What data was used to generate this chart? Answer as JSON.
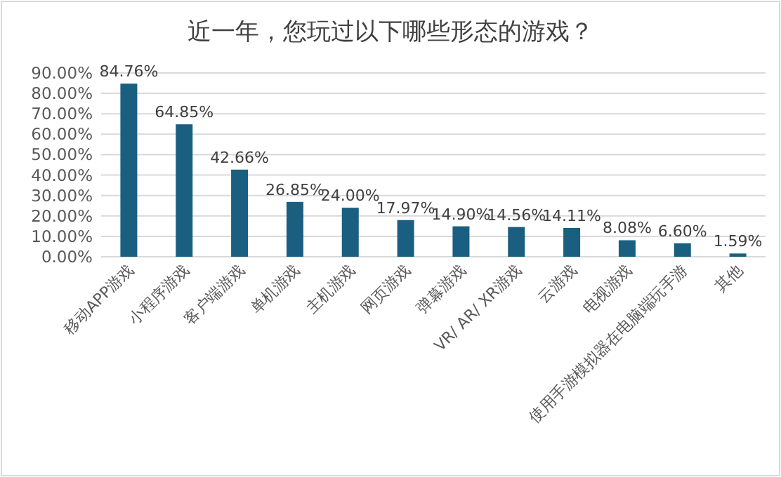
{
  "chart_data": {
    "type": "bar",
    "title": "近一年，您玩过以下哪些形态的游戏？",
    "categories": [
      "移动APP游戏",
      "小程序游戏",
      "客户端游戏",
      "单机游戏",
      "主机游戏",
      "网页游戏",
      "弹幕游戏",
      "VR/ AR/ XR游戏",
      "云游戏",
      "电视游戏",
      "使用手游模拟器在电脑端玩手游",
      "其他"
    ],
    "values": [
      84.76,
      64.85,
      42.66,
      26.85,
      24.0,
      17.97,
      14.9,
      14.56,
      14.11,
      8.08,
      6.6,
      1.59
    ],
    "value_labels": [
      "84.76%",
      "64.85%",
      "42.66%",
      "26.85%",
      "24.00%",
      "17.97%",
      "14.90%",
      "14.56%",
      "14.11%",
      "8.08%",
      "6.60%",
      "1.59%"
    ],
    "color": "#1a5f80",
    "ylim": [
      0,
      90
    ],
    "yticks": [
      {
        "value": 0,
        "label": "0.00%"
      },
      {
        "value": 10,
        "label": "10.00%"
      },
      {
        "value": 20,
        "label": "20.00%"
      },
      {
        "value": 30,
        "label": "30.00%"
      },
      {
        "value": 40,
        "label": "40.00%"
      },
      {
        "value": 50,
        "label": "50.00%"
      },
      {
        "value": 60,
        "label": "60.00%"
      },
      {
        "value": 70,
        "label": "70.00%"
      },
      {
        "value": 80,
        "label": "80.00%"
      },
      {
        "value": 90,
        "label": "90.00%"
      }
    ],
    "grid": "y"
  }
}
